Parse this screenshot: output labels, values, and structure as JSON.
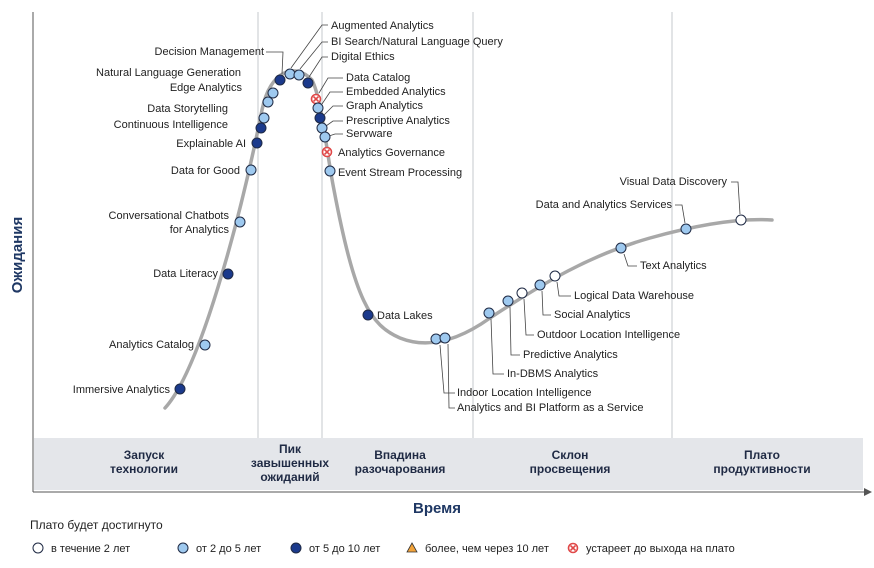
{
  "chart_data": {
    "type": "scatter",
    "title": "",
    "xlabel": "Время",
    "ylabel": "Ожидания",
    "phases": [
      {
        "name": "Запуск технологии",
        "lines": [
          "Запуск",
          "технологии"
        ]
      },
      {
        "name": "Пик завышенных ожиданий",
        "lines": [
          "Пик",
          "завышенных",
          "ожиданий"
        ]
      },
      {
        "name": "Впадина разочарования",
        "lines": [
          "Впадина",
          "разочарования"
        ]
      },
      {
        "name": "Склон просвещения",
        "lines": [
          "Склон",
          "просвещения"
        ]
      },
      {
        "name": "Плато продуктивности",
        "lines": [
          "Плато",
          "продуктивности"
        ]
      }
    ],
    "legend": {
      "title": "Плато будет достигнуто",
      "items": [
        {
          "label": "в течение 2 лет",
          "category": "lt2",
          "color": "#ffffff"
        },
        {
          "label": "от 2 до 5 лет",
          "category": "2to5",
          "color": "#9ec9ef"
        },
        {
          "label": "от 5 до 10 лет",
          "category": "5to10",
          "color": "#1b3a8c"
        },
        {
          "label": "более, чем через 10 лет",
          "category": "gt10",
          "color": "#f2a33a"
        },
        {
          "label": "устареет до выхода на плато",
          "category": "obsolete",
          "color": "#e04848"
        }
      ]
    },
    "points": [
      {
        "label": "Immersive Analytics",
        "category": "5to10"
      },
      {
        "label": "Analytics Catalog",
        "category": "2to5"
      },
      {
        "label": "Data Literacy",
        "category": "5to10"
      },
      {
        "label": "Conversational Chatbots for Analytics",
        "category": "2to5"
      },
      {
        "label": "Data for Good",
        "category": "2to5"
      },
      {
        "label": "Explainable AI",
        "category": "5to10"
      },
      {
        "label": "Continuous Intelligence",
        "category": "5to10"
      },
      {
        "label": "Data Storytelling",
        "category": "2to5"
      },
      {
        "label": "Edge Analytics",
        "category": "2to5"
      },
      {
        "label": "Natural Language Generation",
        "category": "2to5"
      },
      {
        "label": "Decision Management",
        "category": "5to10"
      },
      {
        "label": "Augmented Analytics",
        "category": "2to5"
      },
      {
        "label": "BI Search/Natural Language Query",
        "category": "2to5"
      },
      {
        "label": "Digital Ethics",
        "category": "5to10"
      },
      {
        "label": "Data Catalog",
        "category": "obsolete"
      },
      {
        "label": "Embedded Analytics",
        "category": "2to5"
      },
      {
        "label": "Graph Analytics",
        "category": "5to10"
      },
      {
        "label": "Prescriptive Analytics",
        "category": "2to5"
      },
      {
        "label": "Servware",
        "category": "2to5"
      },
      {
        "label": "Analytics Governance",
        "category": "obsolete"
      },
      {
        "label": "Event Stream Processing",
        "category": "2to5"
      },
      {
        "label": "Data Lakes",
        "category": "5to10"
      },
      {
        "label": "Indoor Location Intelligence",
        "category": "2to5"
      },
      {
        "label": "Analytics and BI Platform as a Service",
        "category": "2to5"
      },
      {
        "label": "In-DBMS Analytics",
        "category": "2to5"
      },
      {
        "label": "Predictive Analytics",
        "category": "2to5"
      },
      {
        "label": "Outdoor Location Intelligence",
        "category": "lt2"
      },
      {
        "label": "Social Analytics",
        "category": "2to5"
      },
      {
        "label": "Logical Data Warehouse",
        "category": "lt2"
      },
      {
        "label": "Text Analytics",
        "category": "2to5"
      },
      {
        "label": "Data and Analytics Services",
        "category": "2to5"
      },
      {
        "label": "Visual Data Discovery",
        "category": "lt2"
      }
    ]
  }
}
